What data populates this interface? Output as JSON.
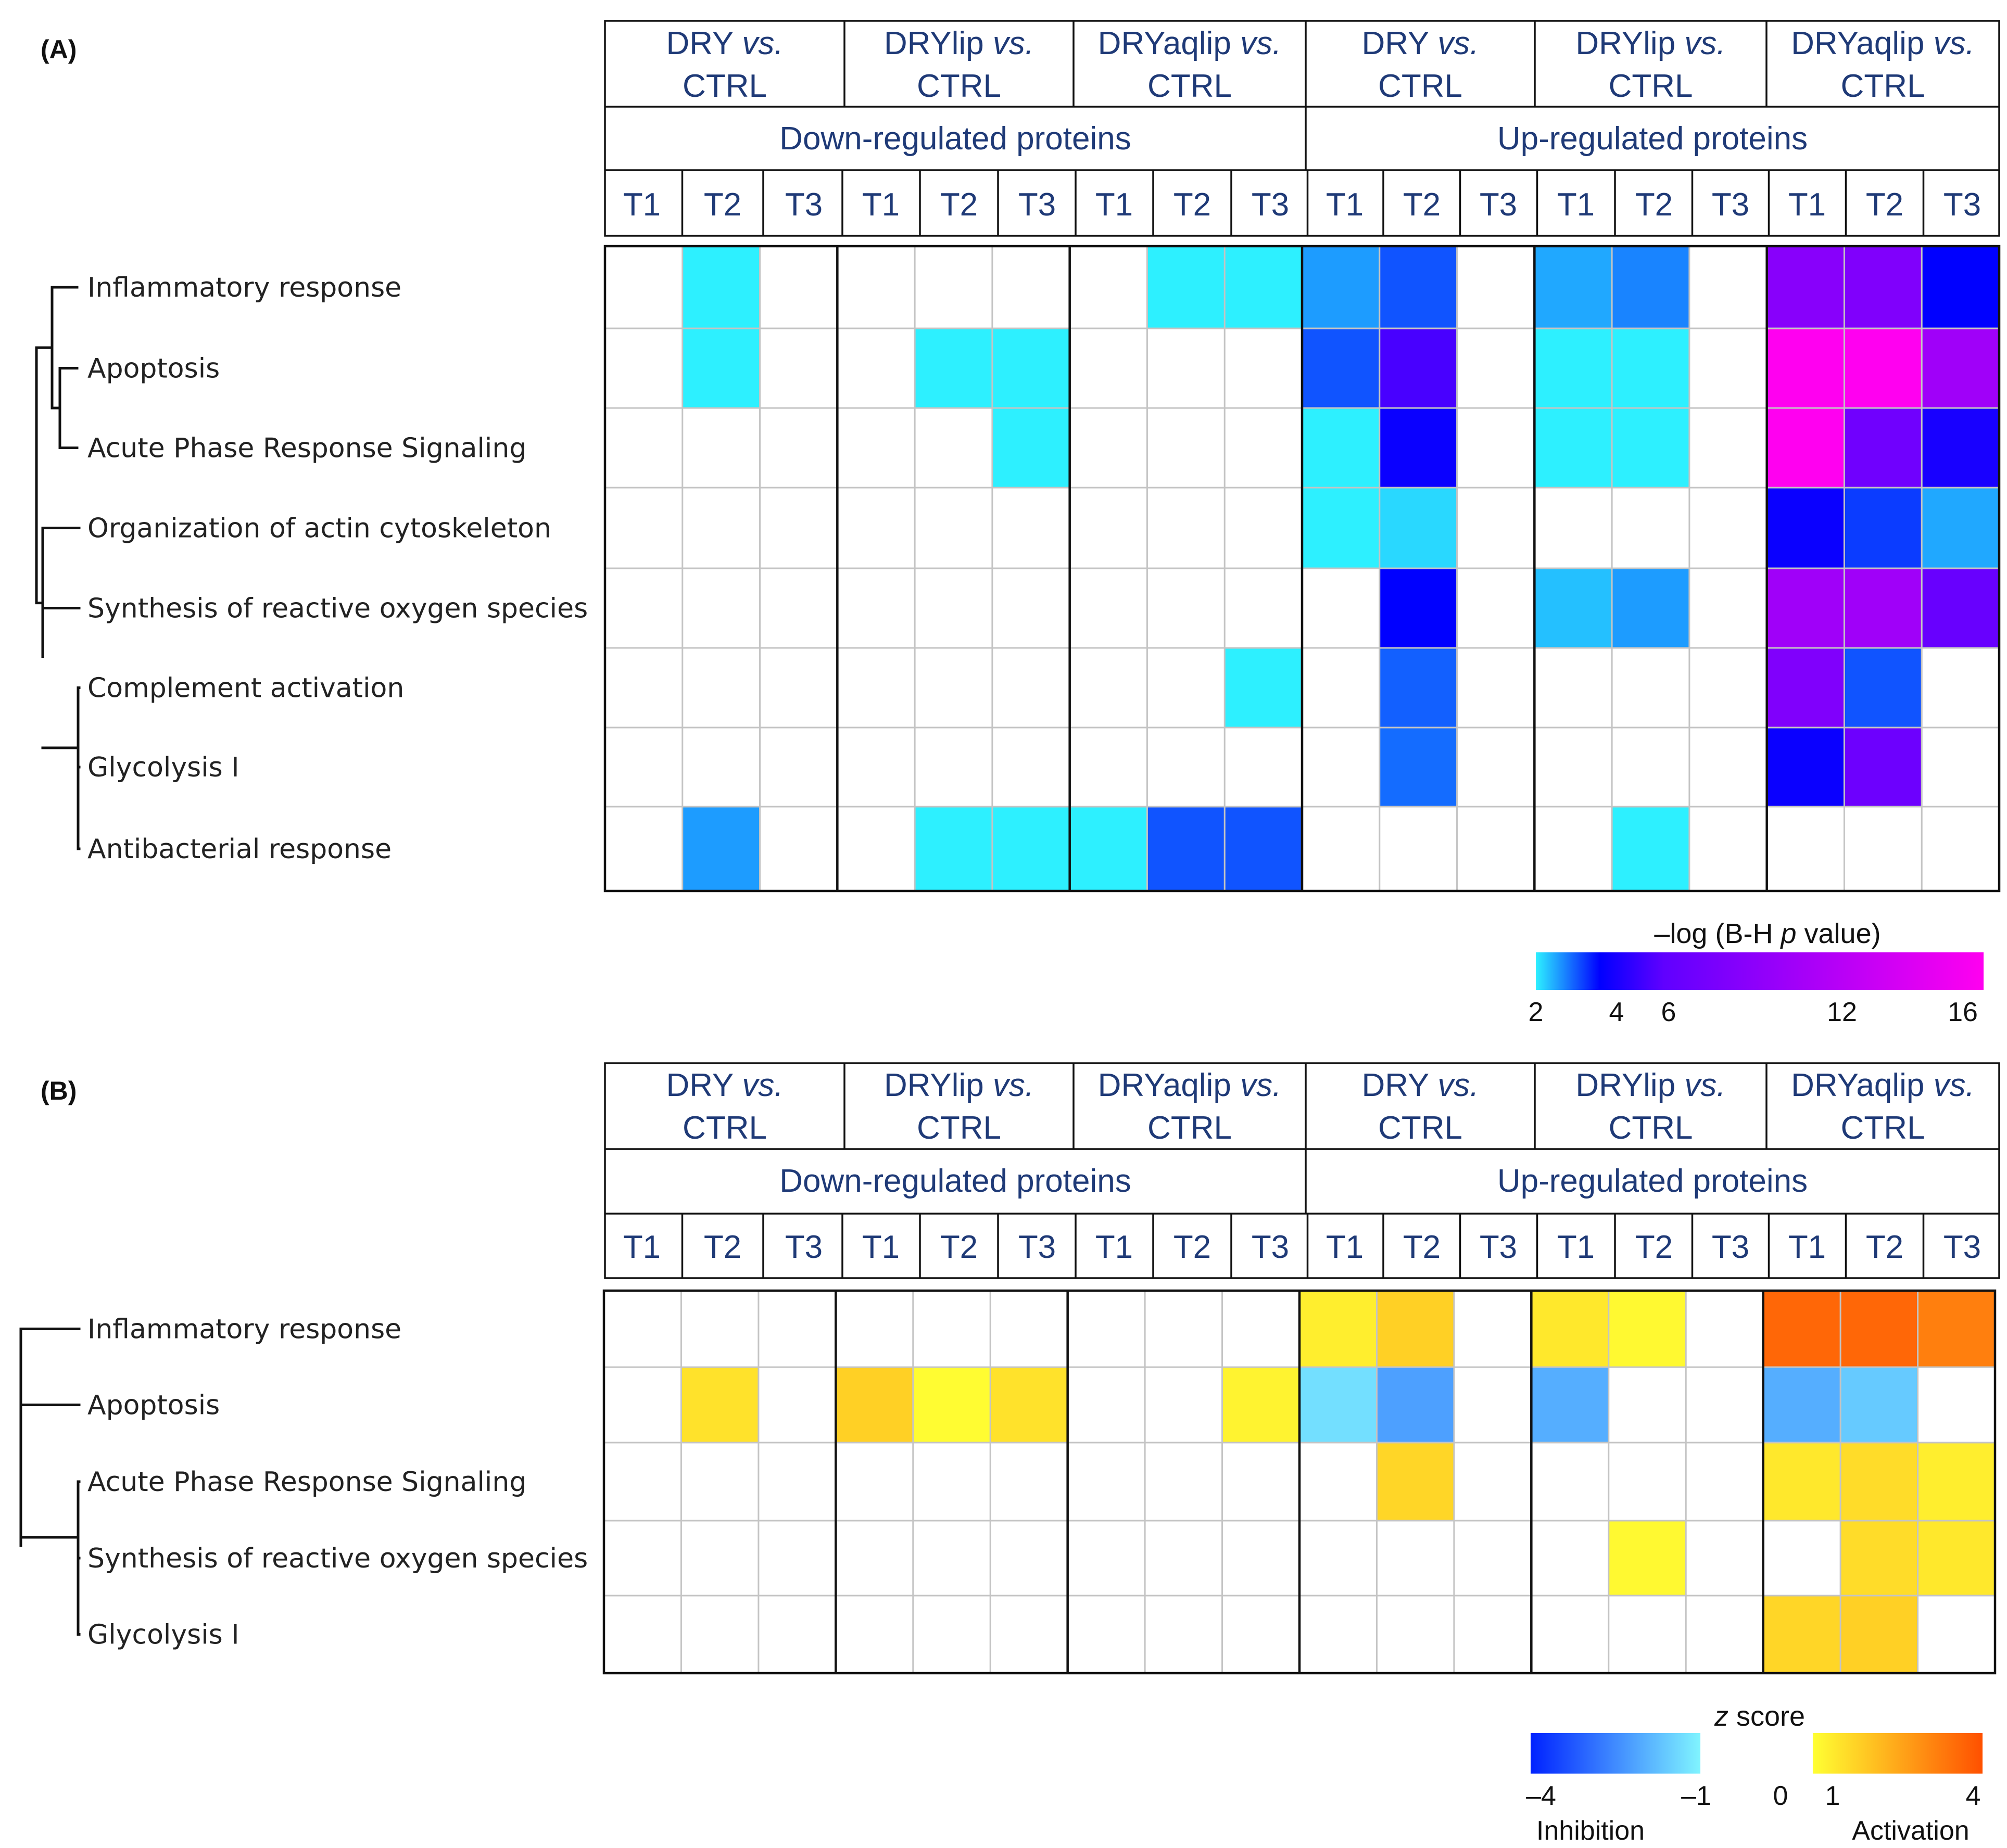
{
  "chart_data": [
    {
      "type": "heatmap",
      "panel": "(A)",
      "comparisons": [
        {
          "name": "DRY",
          "vs": "vs.",
          "ref": "CTRL"
        },
        {
          "name": "DRYlip",
          "vs": "vs.",
          "ref": "CTRL"
        },
        {
          "name": "DRYaqlip",
          "vs": "vs.",
          "ref": "CTRL"
        }
      ],
      "groups": [
        "Down-regulated proteins",
        "Up-regulated proteins"
      ],
      "timepoints": [
        "T1",
        "T2",
        "T3"
      ],
      "rows": [
        "Inflammatory response",
        "Apoptosis",
        "Acute Phase Response Signaling",
        "Organization of actin cytoskeleton",
        "Synthesis of reactive oxygen species",
        "Complement activation",
        "Glycolysis I",
        "Antibacterial response"
      ],
      "columns": [
        "Down DRY T1",
        "Down DRY T2",
        "Down DRY T3",
        "Down DRYlip T1",
        "Down DRYlip T2",
        "Down DRYlip T3",
        "Down DRYaqlip T1",
        "Down DRYaqlip T2",
        "Down DRYaqlip T3",
        "Up DRY T1",
        "Up DRY T2",
        "Up DRY T3",
        "Up DRYlip T1",
        "Up DRYlip T2",
        "Up DRYlip T3",
        "Up DRYaqlip T1",
        "Up DRYaqlip T2",
        "Up DRYaqlip T3"
      ],
      "values": [
        [
          null,
          2.0,
          null,
          null,
          null,
          null,
          null,
          2.0,
          2.0,
          2.7,
          3.3,
          null,
          2.6,
          2.9,
          null,
          8.5,
          8.0,
          4.0
        ],
        [
          null,
          2.0,
          null,
          null,
          2.0,
          2.0,
          null,
          null,
          null,
          3.3,
          5.5,
          null,
          2.0,
          2.0,
          null,
          16.0,
          16.0,
          10.0
        ],
        [
          null,
          null,
          null,
          null,
          null,
          2.0,
          null,
          null,
          null,
          2.0,
          4.2,
          null,
          2.0,
          2.0,
          null,
          16.0,
          7.0,
          4.5
        ],
        [
          null,
          null,
          null,
          null,
          null,
          null,
          null,
          null,
          null,
          2.0,
          2.2,
          null,
          null,
          null,
          null,
          4.2,
          3.5,
          2.6
        ],
        [
          null,
          null,
          null,
          null,
          null,
          null,
          null,
          null,
          null,
          null,
          4.0,
          null,
          2.4,
          2.7,
          null,
          10.0,
          10.0,
          6.5
        ],
        [
          null,
          null,
          null,
          null,
          null,
          null,
          null,
          null,
          2.0,
          null,
          3.2,
          null,
          null,
          null,
          null,
          8.0,
          3.3,
          null
        ],
        [
          null,
          null,
          null,
          null,
          null,
          null,
          null,
          null,
          null,
          null,
          3.1,
          null,
          null,
          null,
          null,
          4.2,
          6.8,
          null
        ],
        [
          null,
          2.7,
          null,
          null,
          2.0,
          2.0,
          2.0,
          3.3,
          3.3,
          null,
          null,
          null,
          null,
          2.0,
          null,
          null,
          null,
          null
        ]
      ],
      "colorbar": {
        "title": "–log (B-H p value)",
        "ticks": [
          "2",
          "4",
          "6",
          "12",
          "16"
        ],
        "range": [
          2,
          16
        ]
      },
      "colors": {
        "c2": "#2df0ff",
        "c4": "#0000ff",
        "c6": "#6000ff",
        "c16": "#ff00f0"
      }
    },
    {
      "type": "heatmap",
      "panel": "(B)",
      "comparisons": [
        {
          "name": "DRY",
          "vs": "vs.",
          "ref": "CTRL"
        },
        {
          "name": "DRYlip",
          "vs": "vs.",
          "ref": "CTRL"
        },
        {
          "name": "DRYaqlip",
          "vs": "vs.",
          "ref": "CTRL"
        }
      ],
      "groups": [
        "Down-regulated proteins",
        "Up-regulated proteins"
      ],
      "timepoints": [
        "T1",
        "T2",
        "T3"
      ],
      "rows": [
        "Inflammatory response",
        "Apoptosis",
        "Acute Phase Response Signaling",
        "Synthesis of reactive oxygen species",
        "Glycolysis I"
      ],
      "columns": [
        "Down DRY T1",
        "Down DRY T2",
        "Down DRY T3",
        "Down DRYlip T1",
        "Down DRYlip T2",
        "Down DRYlip T3",
        "Down DRYaqlip T1",
        "Down DRYaqlip T2",
        "Down DRYaqlip T3",
        "Up DRY T1",
        "Up DRY T2",
        "Up DRY T3",
        "Up DRYlip T1",
        "Up DRYlip T2",
        "Up DRYlip T3",
        "Up DRYaqlip T1",
        "Up DRYaqlip T2",
        "Up DRYaqlip T3"
      ],
      "values": [
        [
          null,
          null,
          null,
          null,
          null,
          null,
          null,
          null,
          null,
          1.3,
          1.8,
          null,
          1.4,
          1.1,
          null,
          3.6,
          3.6,
          3.2
        ],
        [
          null,
          1.5,
          null,
          1.8,
          1.05,
          1.5,
          null,
          null,
          1.2,
          -1.3,
          -2.2,
          null,
          -2.0,
          null,
          null,
          -2.0,
          -1.6,
          null
        ],
        [
          null,
          null,
          null,
          null,
          null,
          null,
          null,
          null,
          null,
          null,
          1.7,
          null,
          null,
          null,
          null,
          1.4,
          1.6,
          1.3
        ],
        [
          null,
          null,
          null,
          null,
          null,
          null,
          null,
          null,
          null,
          null,
          null,
          null,
          null,
          1.1,
          null,
          null,
          1.6,
          1.4
        ],
        [
          null,
          null,
          null,
          null,
          null,
          null,
          null,
          null,
          null,
          null,
          null,
          null,
          null,
          null,
          null,
          1.7,
          1.8,
          null
        ]
      ],
      "colorbar": {
        "title": "z score",
        "ticks": [
          "–4",
          "–1",
          "0",
          "1",
          "4"
        ],
        "range": [
          -4,
          4
        ],
        "labels": [
          "Inhibition",
          "Activation"
        ]
      },
      "colors": {
        "neg4": "#0022ff",
        "neg1": "#80f4ff",
        "zero": "#ffffff",
        "pos1": "#ffff33",
        "pos4": "#ff5000"
      }
    }
  ]
}
